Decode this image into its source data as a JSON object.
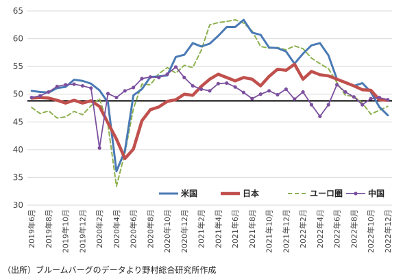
{
  "source_note": "（出所）ブルームバーグのデータより野村総合研究所作成",
  "chart_data": {
    "type": "line",
    "title": "",
    "xlabel": "",
    "ylabel": "",
    "ylim": [
      30,
      65
    ],
    "yticks": [
      30,
      35,
      40,
      45,
      50,
      55,
      60,
      65
    ],
    "grid": "horizontal",
    "legend_placement": "bottom-right",
    "reference_line": 48.8,
    "x_tick_labels": [
      "2019年6月",
      "2019年8月",
      "2019年10月",
      "2019年12月",
      "2020年2月",
      "2020年4月",
      "2020年6月",
      "2020年8月",
      "2020年10月",
      "2020年12月",
      "2021年2月",
      "2021年4月",
      "2021年6月",
      "2021年8月",
      "2021年10月",
      "2021年12月",
      "2022年2月",
      "2022年4月",
      "2022年6月",
      "2022年8月",
      "2022年10月",
      "2022年12月"
    ],
    "x": [
      "2019-06",
      "2019-07",
      "2019-08",
      "2019-09",
      "2019-10",
      "2019-11",
      "2019-12",
      "2020-01",
      "2020-02",
      "2020-03",
      "2020-04",
      "2020-05",
      "2020-06",
      "2020-07",
      "2020-08",
      "2020-09",
      "2020-10",
      "2020-11",
      "2020-12",
      "2021-01",
      "2021-02",
      "2021-03",
      "2021-04",
      "2021-05",
      "2021-06",
      "2021-07",
      "2021-08",
      "2021-09",
      "2021-10",
      "2021-11",
      "2021-12",
      "2022-01",
      "2022-02",
      "2022-03",
      "2022-04",
      "2022-05",
      "2022-06",
      "2022-07",
      "2022-08",
      "2022-09",
      "2022-10",
      "2022-11",
      "2022-12"
    ],
    "series": [
      {
        "name": "米国",
        "color": "#4a7ab5",
        "style": "solid",
        "marker": "none",
        "values": [
          50.6,
          50.4,
          50.3,
          51.1,
          51.3,
          52.6,
          52.4,
          51.9,
          50.7,
          48.5,
          36.1,
          39.8,
          49.8,
          50.9,
          53.1,
          53.2,
          53.4,
          56.7,
          57.1,
          59.2,
          58.6,
          59.1,
          60.5,
          62.1,
          62.1,
          63.4,
          61.1,
          60.7,
          58.4,
          58.3,
          57.7,
          55.5,
          57.3,
          58.8,
          59.2,
          57.0,
          52.7,
          52.2,
          51.5,
          52.0,
          50.4,
          47.7,
          46.2
        ]
      },
      {
        "name": "日本",
        "color": "#c0504d",
        "style": "thick",
        "marker": "none",
        "values": [
          49.3,
          49.4,
          49.3,
          48.9,
          48.4,
          48.9,
          48.4,
          48.8,
          47.8,
          44.8,
          41.9,
          38.4,
          40.1,
          45.2,
          47.2,
          47.7,
          48.7,
          49.0,
          50.0,
          49.8,
          51.4,
          52.7,
          53.6,
          53.0,
          52.4,
          53.0,
          52.7,
          51.5,
          53.2,
          54.5,
          54.3,
          55.4,
          52.7,
          54.1,
          53.5,
          53.3,
          52.7,
          52.1,
          51.5,
          50.8,
          50.7,
          49.0,
          48.9
        ]
      },
      {
        "name": "ユーロ圏",
        "color": "#8db04f",
        "style": "dashed",
        "marker": "none",
        "values": [
          47.6,
          46.5,
          47.0,
          45.7,
          45.9,
          46.9,
          46.3,
          47.9,
          49.2,
          44.5,
          33.4,
          39.4,
          47.4,
          51.8,
          51.7,
          53.7,
          54.8,
          53.8,
          55.2,
          54.8,
          57.9,
          62.5,
          62.9,
          63.1,
          63.4,
          62.8,
          61.4,
          58.6,
          58.3,
          58.4,
          58.0,
          58.7,
          58.2,
          56.5,
          55.5,
          54.6,
          52.1,
          49.8,
          49.6,
          48.4,
          46.4,
          47.1,
          47.8
        ]
      },
      {
        "name": "中国",
        "color": "#7b4f9e",
        "style": "solid",
        "marker": "circle",
        "values": [
          49.4,
          49.7,
          50.4,
          51.4,
          51.7,
          51.8,
          51.5,
          51.1,
          40.3,
          50.1,
          49.4,
          50.6,
          51.2,
          52.8,
          53.1,
          53.0,
          53.6,
          54.9,
          53.0,
          51.5,
          50.9,
          50.6,
          51.9,
          52.0,
          51.3,
          50.3,
          49.2,
          50.0,
          50.6,
          49.9,
          50.9,
          49.1,
          50.4,
          48.1,
          46.0,
          48.1,
          51.7,
          50.4,
          49.5,
          48.1,
          49.2,
          49.4,
          49.0
        ]
      }
    ]
  }
}
